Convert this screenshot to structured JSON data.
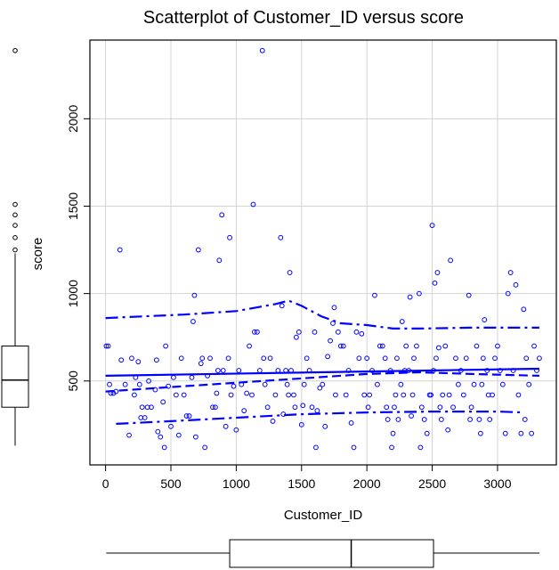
{
  "chart_data": {
    "type": "scatter",
    "title": "Scatterplot of Customer_ID versus score",
    "xlabel": "Customer_ID",
    "ylabel": "score",
    "xlim": [
      -120,
      3450
    ],
    "ylim": [
      20,
      2450
    ],
    "x_ticks": [
      0,
      500,
      1000,
      1500,
      2000,
      2500,
      3000
    ],
    "y_ticks": [
      500,
      1000,
      1500,
      2000
    ],
    "grid": true,
    "colors": {
      "points": "#0000ff",
      "lines": "#0000ff",
      "grid": "#d3d3d3",
      "box": "#000000"
    },
    "points": [
      [
        5,
        700
      ],
      [
        20,
        700
      ],
      [
        30,
        480
      ],
      [
        40,
        430
      ],
      [
        60,
        430
      ],
      [
        80,
        440
      ],
      [
        110,
        1250
      ],
      [
        120,
        620
      ],
      [
        150,
        480
      ],
      [
        180,
        190
      ],
      [
        200,
        630
      ],
      [
        220,
        420
      ],
      [
        230,
        520
      ],
      [
        250,
        610
      ],
      [
        260,
        480
      ],
      [
        270,
        290
      ],
      [
        280,
        350
      ],
      [
        300,
        290
      ],
      [
        320,
        350
      ],
      [
        330,
        500
      ],
      [
        350,
        350
      ],
      [
        380,
        450
      ],
      [
        390,
        620
      ],
      [
        400,
        210
      ],
      [
        420,
        180
      ],
      [
        440,
        380
      ],
      [
        450,
        120
      ],
      [
        460,
        700
      ],
      [
        480,
        470
      ],
      [
        500,
        240
      ],
      [
        520,
        520
      ],
      [
        540,
        420
      ],
      [
        560,
        190
      ],
      [
        580,
        630
      ],
      [
        600,
        420
      ],
      [
        620,
        300
      ],
      [
        640,
        300
      ],
      [
        660,
        520
      ],
      [
        670,
        840
      ],
      [
        680,
        990
      ],
      [
        690,
        180
      ],
      [
        710,
        1250
      ],
      [
        730,
        600
      ],
      [
        740,
        630
      ],
      [
        760,
        120
      ],
      [
        780,
        530
      ],
      [
        800,
        630
      ],
      [
        820,
        350
      ],
      [
        840,
        350
      ],
      [
        850,
        430
      ],
      [
        860,
        560
      ],
      [
        870,
        1190
      ],
      [
        890,
        1450
      ],
      [
        900,
        560
      ],
      [
        920,
        240
      ],
      [
        940,
        630
      ],
      [
        950,
        1320
      ],
      [
        960,
        420
      ],
      [
        980,
        470
      ],
      [
        1000,
        220
      ],
      [
        1020,
        560
      ],
      [
        1040,
        480
      ],
      [
        1060,
        330
      ],
      [
        1080,
        430
      ],
      [
        1100,
        700
      ],
      [
        1120,
        420
      ],
      [
        1130,
        1510
      ],
      [
        1140,
        780
      ],
      [
        1160,
        780
      ],
      [
        1180,
        560
      ],
      [
        1200,
        2390
      ],
      [
        1210,
        630
      ],
      [
        1220,
        480
      ],
      [
        1240,
        350
      ],
      [
        1260,
        630
      ],
      [
        1280,
        270
      ],
      [
        1300,
        420
      ],
      [
        1320,
        560
      ],
      [
        1340,
        1320
      ],
      [
        1350,
        930
      ],
      [
        1360,
        310
      ],
      [
        1380,
        560
      ],
      [
        1390,
        480
      ],
      [
        1400,
        420
      ],
      [
        1410,
        1120
      ],
      [
        1420,
        560
      ],
      [
        1440,
        420
      ],
      [
        1450,
        350
      ],
      [
        1460,
        750
      ],
      [
        1480,
        780
      ],
      [
        1500,
        250
      ],
      [
        1510,
        360
      ],
      [
        1520,
        480
      ],
      [
        1540,
        630
      ],
      [
        1560,
        560
      ],
      [
        1580,
        350
      ],
      [
        1600,
        780
      ],
      [
        1610,
        120
      ],
      [
        1620,
        330
      ],
      [
        1640,
        460
      ],
      [
        1660,
        480
      ],
      [
        1680,
        240
      ],
      [
        1700,
        640
      ],
      [
        1720,
        730
      ],
      [
        1740,
        830
      ],
      [
        1750,
        920
      ],
      [
        1760,
        420
      ],
      [
        1780,
        780
      ],
      [
        1800,
        700
      ],
      [
        1820,
        700
      ],
      [
        1840,
        420
      ],
      [
        1860,
        560
      ],
      [
        1880,
        260
      ],
      [
        1900,
        120
      ],
      [
        1920,
        780
      ],
      [
        1940,
        630
      ],
      [
        1960,
        770
      ],
      [
        1980,
        420
      ],
      [
        2000,
        630
      ],
      [
        2010,
        350
      ],
      [
        2020,
        420
      ],
      [
        2040,
        560
      ],
      [
        2060,
        990
      ],
      [
        2080,
        480
      ],
      [
        2100,
        700
      ],
      [
        2120,
        700
      ],
      [
        2140,
        630
      ],
      [
        2150,
        350
      ],
      [
        2160,
        280
      ],
      [
        2180,
        560
      ],
      [
        2190,
        120
      ],
      [
        2200,
        200
      ],
      [
        2210,
        350
      ],
      [
        2220,
        420
      ],
      [
        2230,
        630
      ],
      [
        2240,
        280
      ],
      [
        2260,
        480
      ],
      [
        2270,
        840
      ],
      [
        2280,
        420
      ],
      [
        2290,
        560
      ],
      [
        2300,
        700
      ],
      [
        2320,
        560
      ],
      [
        2330,
        980
      ],
      [
        2340,
        300
      ],
      [
        2350,
        420
      ],
      [
        2360,
        630
      ],
      [
        2380,
        700
      ],
      [
        2400,
        1000
      ],
      [
        2410,
        120
      ],
      [
        2420,
        350
      ],
      [
        2440,
        280
      ],
      [
        2460,
        200
      ],
      [
        2480,
        420
      ],
      [
        2490,
        420
      ],
      [
        2500,
        1390
      ],
      [
        2510,
        560
      ],
      [
        2520,
        1060
      ],
      [
        2530,
        630
      ],
      [
        2540,
        1120
      ],
      [
        2550,
        690
      ],
      [
        2560,
        350
      ],
      [
        2570,
        280
      ],
      [
        2580,
        420
      ],
      [
        2600,
        700
      ],
      [
        2620,
        220
      ],
      [
        2630,
        420
      ],
      [
        2640,
        1190
      ],
      [
        2660,
        350
      ],
      [
        2680,
        630
      ],
      [
        2700,
        480
      ],
      [
        2720,
        560
      ],
      [
        2740,
        420
      ],
      [
        2760,
        630
      ],
      [
        2780,
        990
      ],
      [
        2790,
        280
      ],
      [
        2800,
        350
      ],
      [
        2820,
        480
      ],
      [
        2840,
        700
      ],
      [
        2860,
        280
      ],
      [
        2870,
        200
      ],
      [
        2880,
        480
      ],
      [
        2890,
        630
      ],
      [
        2900,
        850
      ],
      [
        2920,
        560
      ],
      [
        2930,
        420
      ],
      [
        2940,
        280
      ],
      [
        2960,
        420
      ],
      [
        2980,
        630
      ],
      [
        3000,
        700
      ],
      [
        3020,
        560
      ],
      [
        3040,
        480
      ],
      [
        3060,
        200
      ],
      [
        3080,
        1000
      ],
      [
        3100,
        1120
      ],
      [
        3120,
        560
      ],
      [
        3140,
        1050
      ],
      [
        3160,
        420
      ],
      [
        3180,
        200
      ],
      [
        3200,
        910
      ],
      [
        3210,
        280
      ],
      [
        3220,
        630
      ],
      [
        3240,
        480
      ],
      [
        3260,
        200
      ],
      [
        3280,
        700
      ],
      [
        3300,
        560
      ],
      [
        3320,
        630
      ]
    ],
    "lines": [
      {
        "style": "solid",
        "x": [
          0,
          3320
        ],
        "y": [
          530,
          570
        ]
      },
      {
        "style": "dashed",
        "x": [
          0,
          400,
          800,
          1200,
          1600,
          2000,
          2400,
          2800,
          3320
        ],
        "y": [
          440,
          460,
          480,
          500,
          520,
          540,
          550,
          540,
          530
        ]
      },
      {
        "style": "dashdot",
        "x": [
          0,
          600,
          1000,
          1300,
          1400,
          1500,
          1650,
          1800,
          2000,
          2200,
          2400,
          2800,
          3320
        ],
        "y": [
          860,
          880,
          900,
          940,
          960,
          930,
          870,
          830,
          820,
          800,
          800,
          805,
          805
        ]
      },
      {
        "style": "dashdot",
        "x": [
          80,
          500,
          1000,
          1500,
          2000,
          2500,
          3000,
          3200
        ],
        "y": [
          255,
          270,
          290,
          310,
          320,
          325,
          325,
          320
        ]
      }
    ],
    "y_boxplot": {
      "whisker_low": 130,
      "q1": 350,
      "median": 505,
      "q3": 700,
      "whisker_high": 1230,
      "outliers": [
        1250,
        1320,
        1390,
        1450,
        1510,
        2390
      ]
    },
    "x_boxplot": {
      "whisker_low": 5,
      "q1": 950,
      "median": 1880,
      "q3": 2510,
      "whisker_high": 3320
    }
  }
}
